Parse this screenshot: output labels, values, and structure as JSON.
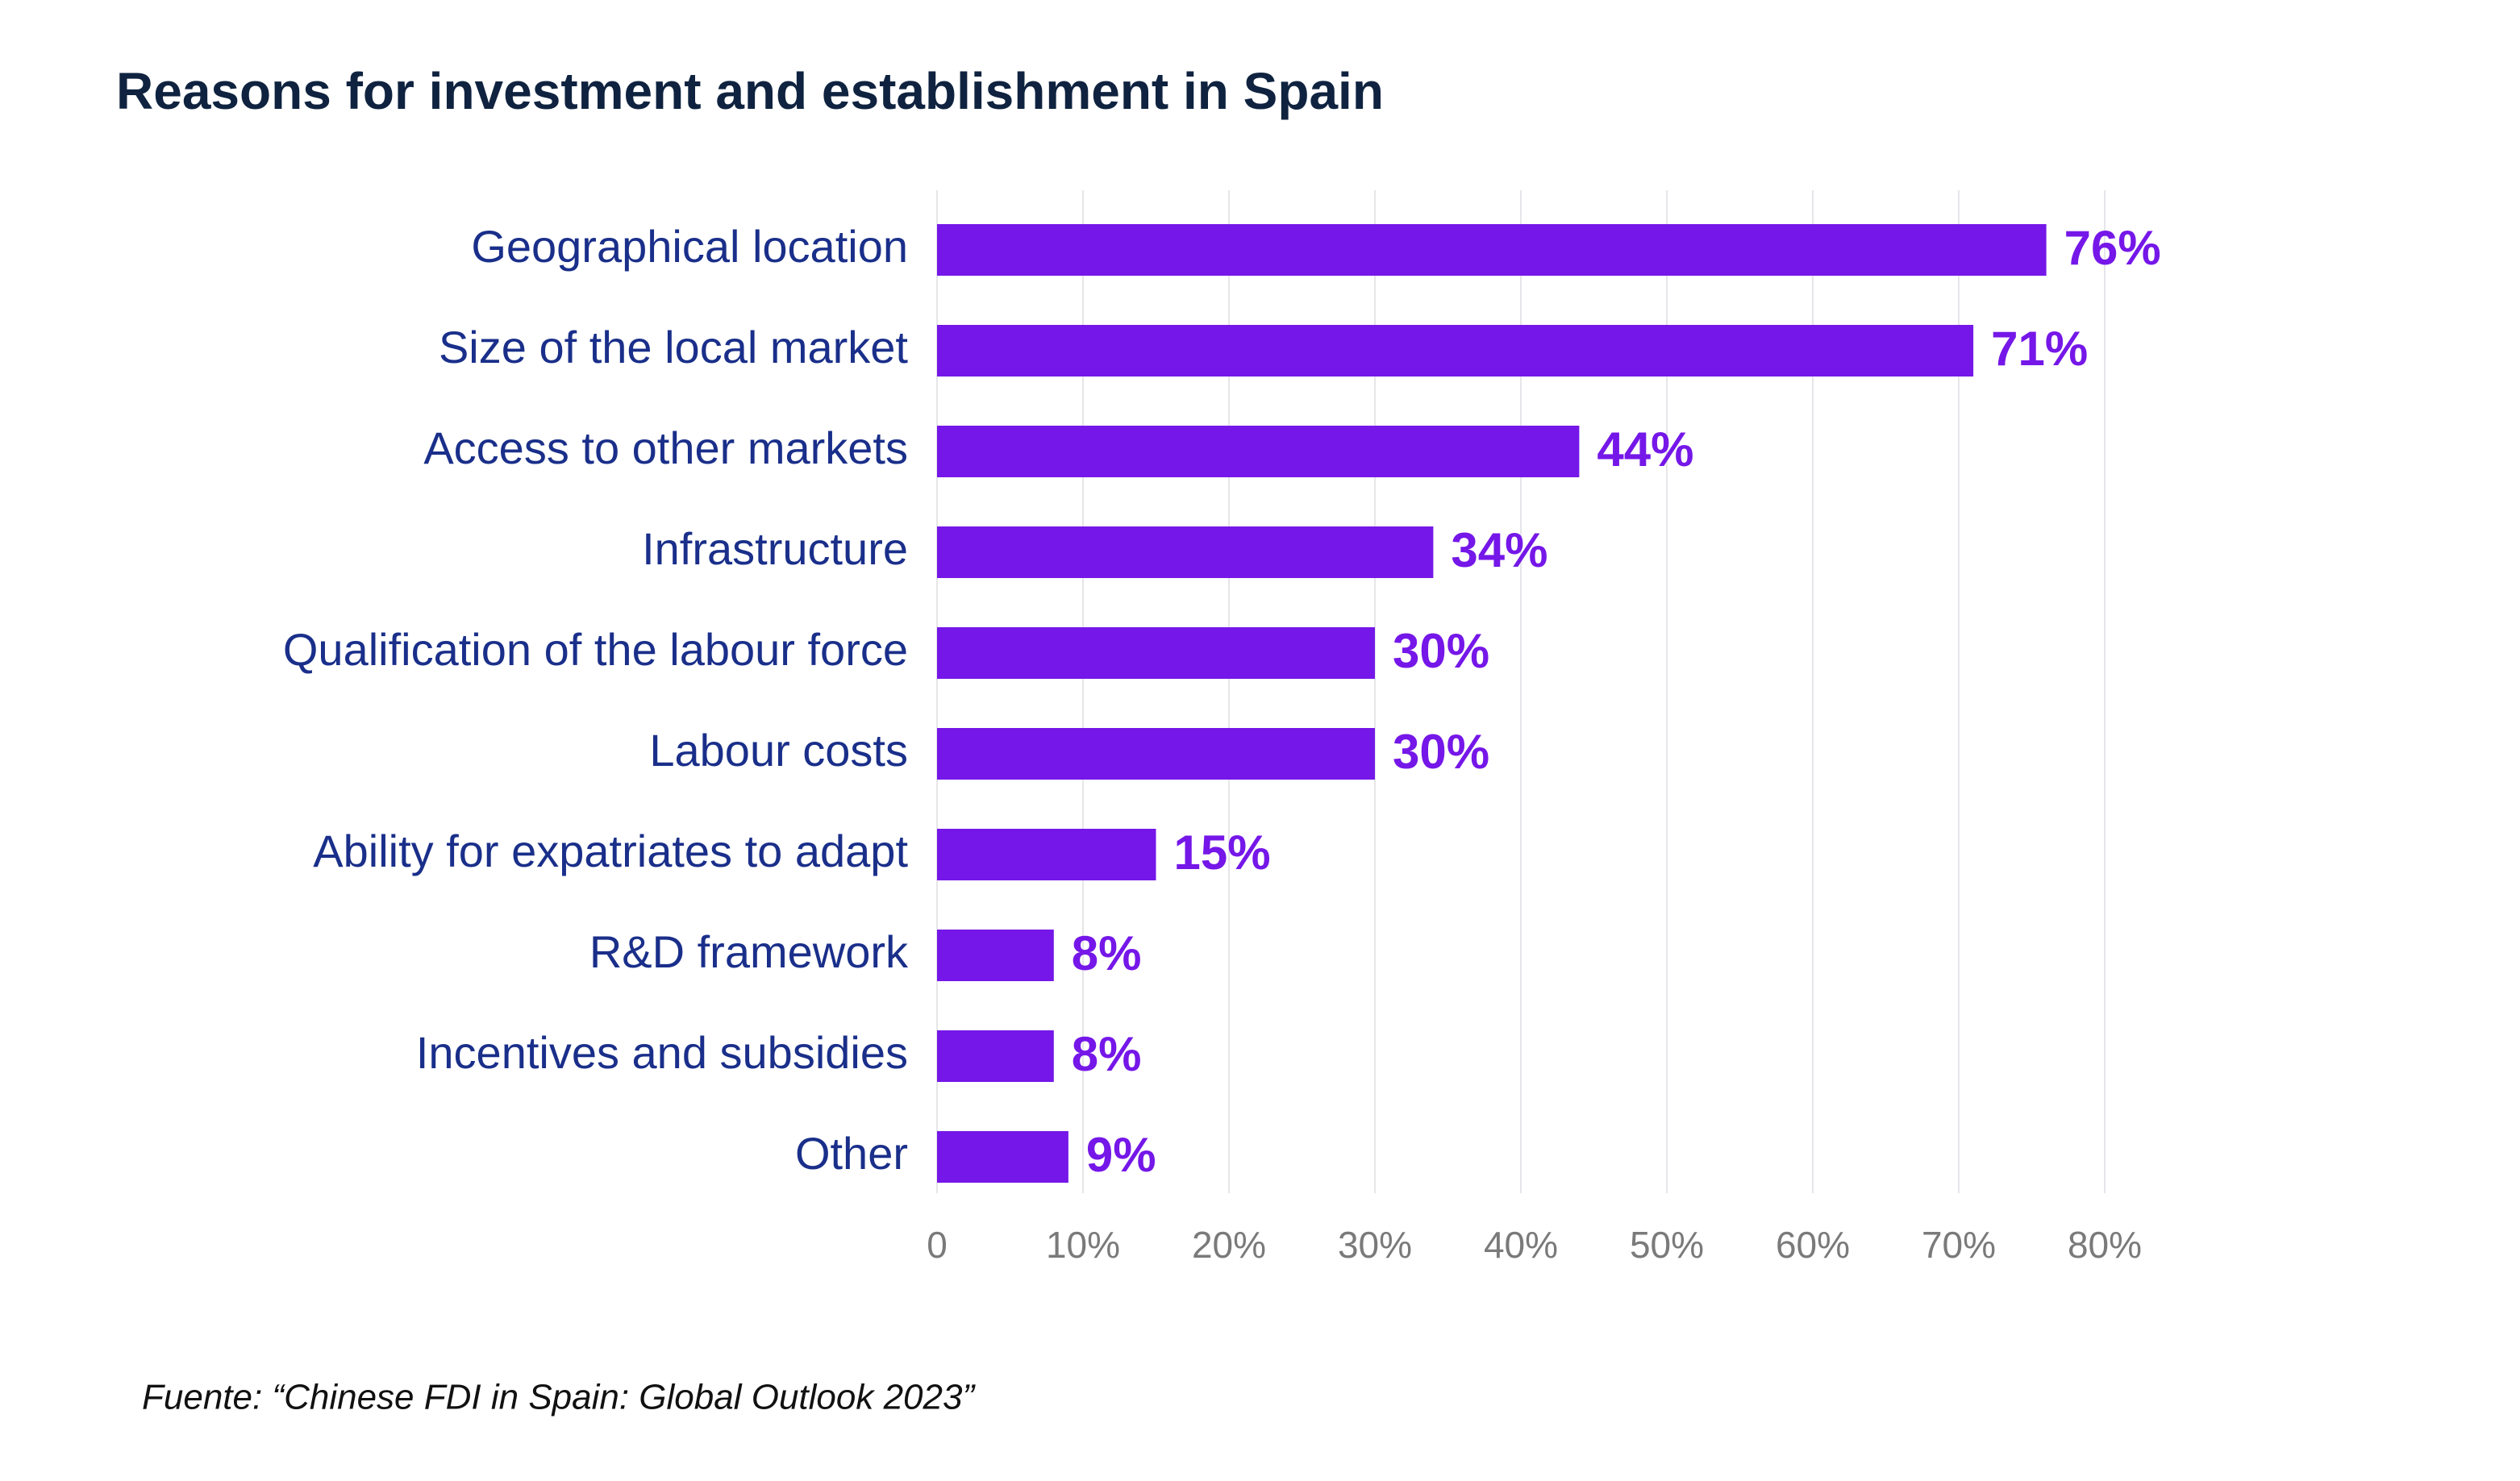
{
  "chart_data": {
    "type": "bar",
    "orientation": "horizontal",
    "title": "Reasons for investment and establishment in Spain",
    "source": "Fuente: “Chinese FDI in Spain: Global Outlook 2023”",
    "categories": [
      "Geographical location",
      "Size of the local market",
      "Access to other markets",
      "Infrastructure",
      "Qualification of the labour force",
      "Labour costs",
      "Ability for expatriates to adapt",
      "R&D framework",
      "Incentives and subsidies",
      "Other"
    ],
    "values": [
      76,
      71,
      44,
      34,
      30,
      30,
      15,
      8,
      8,
      9
    ],
    "value_labels": [
      "76%",
      "71%",
      "44%",
      "34%",
      "30%",
      "30%",
      "15%",
      "8%",
      "8%",
      "9%"
    ],
    "color": "#7517e8",
    "xlim": [
      0,
      80
    ],
    "xticks": [
      0,
      {
        "value": 10,
        "label": "10%"
      },
      {
        "value": 20,
        "label": "20%"
      },
      {
        "value": 30,
        "label": "30%"
      },
      {
        "value": 40,
        "label": "40%"
      },
      {
        "value": 50,
        "label": "50%"
      },
      {
        "value": 60,
        "label": "60%"
      },
      {
        "value": 70,
        "label": "70%"
      },
      {
        "value": 80,
        "label": "80%"
      }
    ],
    "grid": true
  }
}
